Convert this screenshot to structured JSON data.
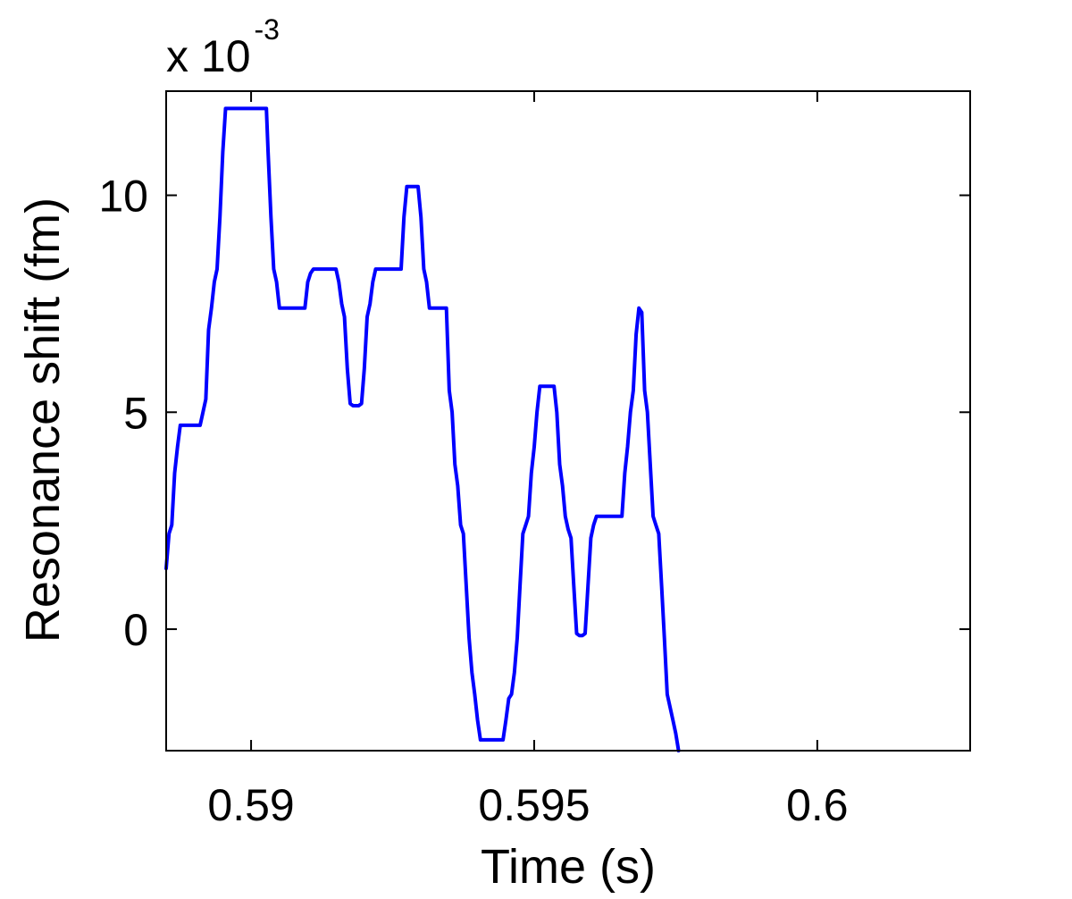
{
  "chart_data": {
    "type": "line",
    "title": "",
    "xlabel": "Time (s)",
    "ylabel": "Resonance shift (fm)",
    "y_multiplier": {
      "base": "x 10",
      "exponent": "-3"
    },
    "xlim": [
      0.5885,
      0.6027
    ],
    "ylim": [
      -2.8,
      12.4
    ],
    "x_ticks": [
      {
        "value": 0.59,
        "label": "0.59"
      },
      {
        "value": 0.595,
        "label": "0.595"
      },
      {
        "value": 0.6,
        "label": "0.6"
      }
    ],
    "y_ticks": [
      {
        "value": 0,
        "label": "0"
      },
      {
        "value": 5,
        "label": "5"
      },
      {
        "value": 10,
        "label": "10"
      }
    ],
    "grid": false,
    "line_color": "#0000ff",
    "series": [
      {
        "points": [
          [
            0.5885,
            1.4
          ],
          [
            0.58855,
            2.2
          ],
          [
            0.5886,
            2.4
          ],
          [
            0.58865,
            3.6
          ],
          [
            0.5887,
            4.2
          ],
          [
            0.58875,
            4.7
          ],
          [
            0.5888,
            4.7
          ],
          [
            0.5889,
            4.7
          ],
          [
            0.589,
            4.7
          ],
          [
            0.5891,
            4.7
          ],
          [
            0.58915,
            5.0
          ],
          [
            0.5892,
            5.3
          ],
          [
            0.58925,
            6.9
          ],
          [
            0.5893,
            7.4
          ],
          [
            0.58935,
            8.0
          ],
          [
            0.5894,
            8.3
          ],
          [
            0.58945,
            9.5
          ],
          [
            0.5895,
            11.0
          ],
          [
            0.58955,
            12.0
          ],
          [
            0.5896,
            12.0
          ],
          [
            0.5898,
            12.0
          ],
          [
            0.59,
            12.0
          ],
          [
            0.5902,
            12.0
          ],
          [
            0.59027,
            12.0
          ],
          [
            0.5903,
            11.0
          ],
          [
            0.59035,
            9.5
          ],
          [
            0.5904,
            8.3
          ],
          [
            0.59045,
            8.0
          ],
          [
            0.5905,
            7.4
          ],
          [
            0.5906,
            7.4
          ],
          [
            0.5908,
            7.4
          ],
          [
            0.59095,
            7.4
          ],
          [
            0.591,
            8.0
          ],
          [
            0.59105,
            8.2
          ],
          [
            0.5911,
            8.3
          ],
          [
            0.5912,
            8.3
          ],
          [
            0.5914,
            8.3
          ],
          [
            0.5915,
            8.3
          ],
          [
            0.59155,
            8.0
          ],
          [
            0.5916,
            7.5
          ],
          [
            0.59165,
            7.2
          ],
          [
            0.5917,
            6.0
          ],
          [
            0.59175,
            5.2
          ],
          [
            0.5918,
            5.15
          ],
          [
            0.5919,
            5.15
          ],
          [
            0.59195,
            5.2
          ],
          [
            0.592,
            6.0
          ],
          [
            0.59205,
            7.2
          ],
          [
            0.5921,
            7.5
          ],
          [
            0.59215,
            8.0
          ],
          [
            0.5922,
            8.3
          ],
          [
            0.5924,
            8.3
          ],
          [
            0.5926,
            8.3
          ],
          [
            0.59265,
            8.3
          ],
          [
            0.5927,
            9.5
          ],
          [
            0.59275,
            10.2
          ],
          [
            0.5929,
            10.2
          ],
          [
            0.59295,
            10.2
          ],
          [
            0.593,
            9.5
          ],
          [
            0.59305,
            8.3
          ],
          [
            0.5931,
            8.0
          ],
          [
            0.59315,
            7.4
          ],
          [
            0.5932,
            7.4
          ],
          [
            0.5933,
            7.4
          ],
          [
            0.59345,
            7.4
          ],
          [
            0.5935,
            5.5
          ],
          [
            0.59355,
            5.0
          ],
          [
            0.5936,
            3.8
          ],
          [
            0.59365,
            3.3
          ],
          [
            0.5937,
            2.4
          ],
          [
            0.59375,
            2.2
          ],
          [
            0.5938,
            1.0
          ],
          [
            0.59385,
            -0.2
          ],
          [
            0.5939,
            -1.0
          ],
          [
            0.59395,
            -1.5
          ],
          [
            0.594,
            -2.1
          ],
          [
            0.59405,
            -2.55
          ],
          [
            0.5941,
            -2.55
          ],
          [
            0.5942,
            -2.55
          ],
          [
            0.59445,
            -2.55
          ],
          [
            0.5945,
            -2.1
          ],
          [
            0.59455,
            -1.6
          ],
          [
            0.5946,
            -1.5
          ],
          [
            0.59465,
            -1.0
          ],
          [
            0.5947,
            -0.2
          ],
          [
            0.59475,
            1.0
          ],
          [
            0.5948,
            2.2
          ],
          [
            0.59485,
            2.4
          ],
          [
            0.5949,
            2.6
          ],
          [
            0.59495,
            3.6
          ],
          [
            0.595,
            4.2
          ],
          [
            0.59505,
            5.0
          ],
          [
            0.5951,
            5.6
          ],
          [
            0.5952,
            5.6
          ],
          [
            0.5953,
            5.6
          ],
          [
            0.59535,
            5.6
          ],
          [
            0.5954,
            5.0
          ],
          [
            0.59545,
            3.8
          ],
          [
            0.5955,
            3.3
          ],
          [
            0.59555,
            2.6
          ],
          [
            0.5956,
            2.3
          ],
          [
            0.59565,
            2.1
          ],
          [
            0.5957,
            1.0
          ],
          [
            0.59575,
            -0.1
          ],
          [
            0.5958,
            -0.15
          ],
          [
            0.59585,
            -0.15
          ],
          [
            0.5959,
            -0.1
          ],
          [
            0.59595,
            1.0
          ],
          [
            0.596,
            2.1
          ],
          [
            0.59605,
            2.4
          ],
          [
            0.5961,
            2.6
          ],
          [
            0.5962,
            2.6
          ],
          [
            0.5964,
            2.6
          ],
          [
            0.59655,
            2.6
          ],
          [
            0.5966,
            3.6
          ],
          [
            0.59665,
            4.2
          ],
          [
            0.5967,
            5.0
          ],
          [
            0.59675,
            5.5
          ],
          [
            0.5968,
            6.8
          ],
          [
            0.59685,
            7.4
          ],
          [
            0.5969,
            7.3
          ],
          [
            0.59695,
            5.5
          ],
          [
            0.597,
            5.0
          ],
          [
            0.59705,
            3.8
          ],
          [
            0.5971,
            2.6
          ],
          [
            0.59715,
            2.4
          ],
          [
            0.5972,
            2.2
          ],
          [
            0.59725,
            1.0
          ],
          [
            0.5973,
            -0.2
          ],
          [
            0.59735,
            -1.5
          ],
          [
            0.5974,
            -1.8
          ],
          [
            0.59745,
            -2.1
          ],
          [
            0.5975,
            -2.4
          ],
          [
            0.59755,
            -2.8
          ]
        ]
      }
    ]
  }
}
